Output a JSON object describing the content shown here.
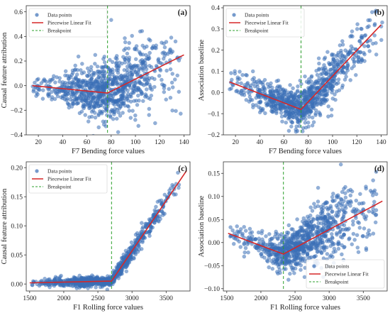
{
  "colors": {
    "points": "#3b6fb6",
    "fit": "#d62728",
    "breakpoint": "#2ca02c"
  },
  "legend": {
    "points": "Data points",
    "fit": "Piecewise Linear Fit",
    "breakpoint": "Breakpoint"
  },
  "chart_data": [
    {
      "type": "scatter",
      "panel": "(a)",
      "xlabel": "F7 Bending force values",
      "ylabel": "Causal feature attribution",
      "xlim": [
        10,
        145
      ],
      "ylim": [
        -0.4,
        0.65
      ],
      "xticks": [
        20,
        40,
        60,
        80,
        100,
        120,
        140
      ],
      "yticks": [
        -0.4,
        -0.2,
        0.0,
        0.2,
        0.4,
        0.6
      ],
      "ytick_labels": [
        "−0.4",
        "−0.2",
        "0.0",
        "0.2",
        "0.4",
        "0.6"
      ],
      "xticks_fmt": "int",
      "grid": false,
      "legend_position": "top-left",
      "breakpoint": 77,
      "fit": [
        [
          15,
          0.0
        ],
        [
          77,
          -0.06
        ],
        [
          140,
          0.25
        ]
      ],
      "cloud": {
        "x_min": 15,
        "x_max": 142,
        "density": "center-heavy",
        "noise": [
          [
            20,
            0.04
          ],
          [
            50,
            0.09
          ],
          [
            77,
            0.12
          ],
          [
            110,
            0.14
          ],
          [
            140,
            0.15
          ]
        ]
      }
    },
    {
      "type": "scatter",
      "panel": "(b)",
      "xlabel": "F7 Bending force values",
      "ylabel": "Association baseline",
      "xlim": [
        10,
        145
      ],
      "ylim": [
        -0.2,
        0.41
      ],
      "xticks": [
        20,
        40,
        60,
        80,
        100,
        120,
        140
      ],
      "yticks": [
        -0.2,
        -0.1,
        0.0,
        0.1,
        0.2,
        0.3,
        0.4
      ],
      "ytick_labels": [
        "−0.2",
        "−0.1",
        "0.0",
        "0.1",
        "0.2",
        "0.3",
        "0.4"
      ],
      "xticks_fmt": "int",
      "grid": false,
      "legend_position": "top-left",
      "breakpoint": 74,
      "fit": [
        [
          15,
          0.05
        ],
        [
          74,
          -0.08
        ],
        [
          140,
          0.32
        ]
      ],
      "cloud": {
        "x_min": 15,
        "x_max": 142,
        "density": "center-heavy",
        "noise": [
          [
            20,
            0.04
          ],
          [
            50,
            0.04
          ],
          [
            74,
            0.05
          ],
          [
            110,
            0.06
          ],
          [
            140,
            0.07
          ]
        ]
      }
    },
    {
      "type": "scatter",
      "panel": "(c)",
      "xlabel": "F1 Rolling force values",
      "ylabel": "Causal feature attribution",
      "xlim": [
        1450,
        3850
      ],
      "ylim": [
        -0.012,
        0.21
      ],
      "xticks": [
        1500,
        2000,
        2500,
        3000,
        3500
      ],
      "yticks": [
        0.0,
        0.05,
        0.1,
        0.15,
        0.2
      ],
      "ytick_labels": [
        "0.00",
        "0.05",
        "0.10",
        "0.15",
        "0.20"
      ],
      "xticks_fmt": "int",
      "grid": false,
      "legend_position": "top-left",
      "breakpoint": 2700,
      "fit": [
        [
          1500,
          0.002
        ],
        [
          2700,
          0.005
        ],
        [
          3800,
          0.195
        ]
      ],
      "cloud": {
        "x_min": 1520,
        "x_max": 3700,
        "density": "center-heavy",
        "noise": [
          [
            1500,
            0.003
          ],
          [
            2000,
            0.004
          ],
          [
            2700,
            0.004
          ],
          [
            3000,
            0.008
          ],
          [
            3500,
            0.01
          ]
        ]
      }
    },
    {
      "type": "scatter",
      "panel": "(d)",
      "xlabel": "F1 Rolling force values",
      "ylabel": "Association baseline",
      "xlim": [
        1450,
        3850
      ],
      "ylim": [
        -0.105,
        0.175
      ],
      "xticks": [
        1500,
        2000,
        2500,
        3000,
        3500
      ],
      "yticks": [
        -0.1,
        -0.05,
        0.0,
        0.05,
        0.1,
        0.15
      ],
      "ytick_labels": [
        "−0.10",
        "−0.05",
        "0.00",
        "0.05",
        "0.10",
        "0.15"
      ],
      "xticks_fmt": "int",
      "grid": false,
      "legend_position": "bottom-right",
      "breakpoint": 2330,
      "fit": [
        [
          1520,
          0.02
        ],
        [
          2330,
          -0.025
        ],
        [
          3780,
          0.09
        ]
      ],
      "cloud": {
        "x_min": 1520,
        "x_max": 3700,
        "density": "center-heavy",
        "noise": [
          [
            1500,
            0.01
          ],
          [
            2000,
            0.015
          ],
          [
            2330,
            0.02
          ],
          [
            2900,
            0.035
          ],
          [
            3500,
            0.04
          ]
        ]
      }
    }
  ]
}
